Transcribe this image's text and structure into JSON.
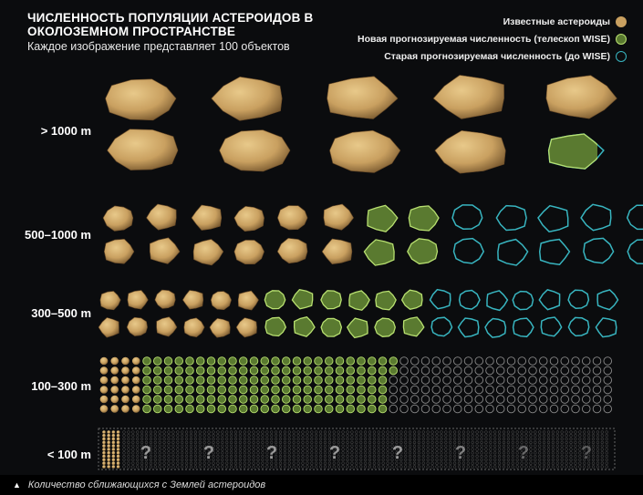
{
  "chart_data": {
    "type": "pictograph",
    "title": "ЧИСЛЕННОСТЬ ПОПУЛЯЦИИ АСТЕРОИДОВ В ОКОЛОЗЕМНОМ ПРОСТРАНСТВЕ",
    "subtitle": "Каждое изображение представляет 100 объектов",
    "unit": 100,
    "legend": [
      {
        "key": "known",
        "label": "Известные астероиды",
        "color": "#c9a060"
      },
      {
        "key": "new",
        "label": "Новая прогнозируемая численность (телескоп WISE)",
        "color": "#5a7a30"
      },
      {
        "key": "old",
        "label": "Старая прогнозируемая численность (до WISE)",
        "color": "#38b5c0"
      }
    ],
    "categories": [
      {
        "label": "> 1000 m",
        "known": 9.1,
        "new": 9.8,
        "old": 10
      },
      {
        "label": "500–1000 m",
        "known": 12,
        "new": 16,
        "old": 26
      },
      {
        "label": "300–500 m",
        "known": 12,
        "new": 24,
        "old": 38
      },
      {
        "label": "100–300 m",
        "known": 30,
        "new": 158,
        "old": 261
      },
      {
        "label": "< 100 m",
        "known": 44,
        "new": null,
        "old": null,
        "unknown_mark": "?"
      }
    ],
    "footer": "Количество сближающихся с Землей астероидов"
  },
  "colors": {
    "known": "#c9a060",
    "new": "#5a7a30",
    "old": "#38b5c0",
    "unknown": "#9a9a9a"
  }
}
